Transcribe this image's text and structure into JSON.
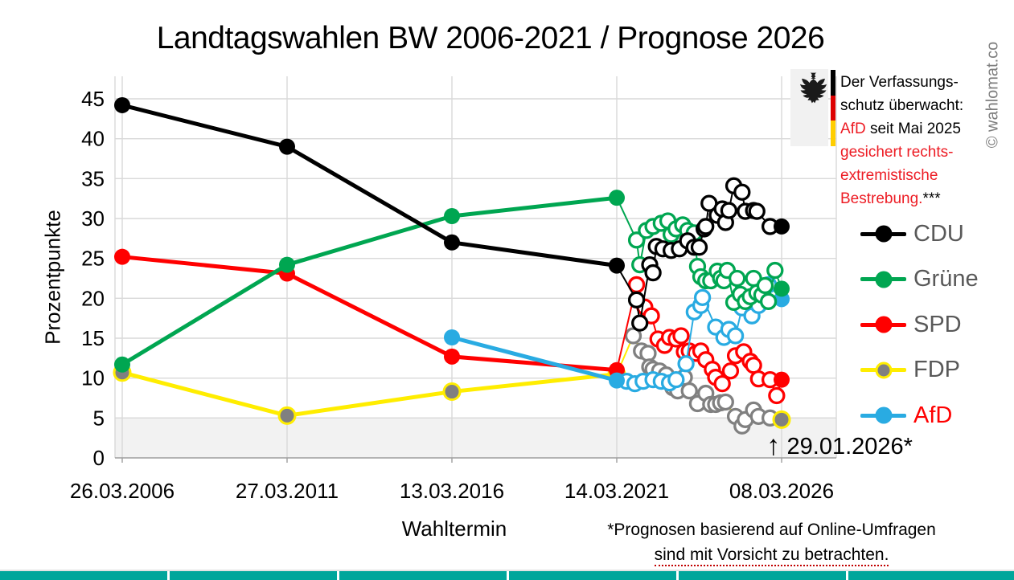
{
  "title": "Landtagswahlen BW 2006-2021 / Prognose 2026",
  "watermark": "© wahlomat.co",
  "infobox": {
    "line1": "Der Verfassungs-",
    "line2": "schutz überwacht:",
    "line3_red": "AfD",
    "line3_black": " seit Mai 2025",
    "line4": "gesichert rechts-",
    "line5": "extremistische",
    "line6_red": "Bestrebung.",
    "line6_black": "***",
    "flag_colors": [
      "#000000",
      "#dd0000",
      "#ffce00"
    ]
  },
  "annotation": {
    "arrow": "↑",
    "label": "29.01.2026*"
  },
  "footnote": {
    "line1": "*Prognosen basierend auf Online-Umfragen",
    "line2": "sind mit Vorsicht zu betrachten."
  },
  "bottom_bar": {
    "color": "#00a69b"
  },
  "chart_data": {
    "type": "line",
    "title": "Landtagswahlen BW 2006-2021 / Prognose 2026",
    "xlabel": "Wahltermin",
    "ylabel": "Prozentpunkte",
    "ylim": [
      0,
      45
    ],
    "yticks": [
      0,
      5,
      10,
      15,
      20,
      25,
      30,
      35,
      40,
      45
    ],
    "categories": [
      "26.03.2006",
      "27.03.2011",
      "13.03.2016",
      "14.03.2021",
      "08.03.2026"
    ],
    "grid": true,
    "legend_position": "right",
    "threshold_band": {
      "from": 0,
      "to": 5
    },
    "colors": {
      "grid": "#d9d9d9",
      "band": "#f2f2f2",
      "band_edge": "#cfcfcf",
      "axis": "#9e9e9e"
    },
    "zorder": [
      "FDP",
      "SPD",
      "AfD",
      "Grüne",
      "CDU"
    ],
    "extra_marker": {
      "color": "#7030a0",
      "point": [
        3.27,
        9.5
      ]
    },
    "series": [
      {
        "name": "CDU",
        "line_color": "#000000",
        "marker_color": "#000000",
        "label_color": "#595959",
        "elections": [
          [
            0,
            44.2
          ],
          [
            1,
            39.0
          ],
          [
            2,
            27.0
          ],
          [
            3,
            24.1
          ]
        ],
        "polls": [
          [
            3.12,
            19.8
          ],
          [
            3.14,
            16.9
          ],
          [
            3.2,
            24.2
          ],
          [
            3.22,
            23.2
          ],
          [
            3.24,
            26.5
          ],
          [
            3.28,
            26.2
          ],
          [
            3.33,
            26.0
          ],
          [
            3.38,
            26.2
          ],
          [
            3.43,
            27.2
          ],
          [
            3.47,
            26.4
          ],
          [
            3.5,
            26.4
          ],
          [
            3.53,
            28.7
          ],
          [
            3.54,
            29.0
          ],
          [
            3.56,
            31.9
          ],
          [
            3.61,
            30.4
          ],
          [
            3.64,
            31.2
          ],
          [
            3.66,
            29.5
          ],
          [
            3.68,
            31.0
          ],
          [
            3.71,
            34.1
          ],
          [
            3.76,
            33.3
          ],
          [
            3.78,
            30.9
          ],
          [
            3.83,
            31.0
          ],
          [
            3.85,
            30.9
          ],
          [
            3.93,
            29.0
          ]
        ],
        "prognose": [
          4,
          29.0
        ]
      },
      {
        "name": "Grüne",
        "line_color": "#00a651",
        "marker_color": "#00a651",
        "label_color": "#595959",
        "elections": [
          [
            0,
            11.7
          ],
          [
            1,
            24.2
          ],
          [
            2,
            30.3
          ],
          [
            3,
            32.6
          ]
        ],
        "polls": [
          [
            3.12,
            27.3
          ],
          [
            3.14,
            24.2
          ],
          [
            3.18,
            28.5
          ],
          [
            3.22,
            29.0
          ],
          [
            3.27,
            29.4
          ],
          [
            3.31,
            29.7
          ],
          [
            3.33,
            28.0
          ],
          [
            3.36,
            28.7
          ],
          [
            3.4,
            29.2
          ],
          [
            3.43,
            28.5
          ],
          [
            3.47,
            28.2
          ],
          [
            3.49,
            24.0
          ],
          [
            3.51,
            22.7
          ],
          [
            3.54,
            22.2
          ],
          [
            3.57,
            22.2
          ],
          [
            3.61,
            23.4
          ],
          [
            3.63,
            22.5
          ],
          [
            3.65,
            22.2
          ],
          [
            3.67,
            23.5
          ],
          [
            3.71,
            19.5
          ],
          [
            3.73,
            22.5
          ],
          [
            3.75,
            20.5
          ],
          [
            3.78,
            19.6
          ],
          [
            3.81,
            20.2
          ],
          [
            3.83,
            22.5
          ],
          [
            3.85,
            20.7
          ],
          [
            3.88,
            20.4
          ],
          [
            3.9,
            21.6
          ],
          [
            3.92,
            19.6
          ],
          [
            3.96,
            23.5
          ]
        ],
        "prognose": [
          4,
          21.2
        ]
      },
      {
        "name": "SPD",
        "line_color": "#ff0000",
        "marker_color": "#ff0000",
        "label_color": "#595959",
        "elections": [
          [
            0,
            25.2
          ],
          [
            1,
            23.1
          ],
          [
            2,
            12.7
          ],
          [
            3,
            11.0
          ]
        ],
        "polls": [
          [
            3.12,
            21.7
          ],
          [
            3.17,
            18.9
          ],
          [
            3.21,
            17.8
          ],
          [
            3.25,
            14.9
          ],
          [
            3.29,
            14.1
          ],
          [
            3.32,
            15.1
          ],
          [
            3.36,
            14.9
          ],
          [
            3.39,
            15.3
          ],
          [
            3.41,
            13.3
          ],
          [
            3.44,
            13.4
          ],
          [
            3.48,
            13.1
          ],
          [
            3.51,
            13.4
          ],
          [
            3.54,
            12.3
          ],
          [
            3.58,
            11.1
          ],
          [
            3.6,
            10.1
          ],
          [
            3.64,
            9.3
          ],
          [
            3.69,
            10.9
          ],
          [
            3.72,
            12.8
          ],
          [
            3.77,
            13.3
          ],
          [
            3.81,
            12.1
          ],
          [
            3.83,
            11.6
          ],
          [
            3.86,
            9.9
          ],
          [
            3.93,
            9.8
          ],
          [
            3.97,
            7.8
          ]
        ],
        "prognose": [
          4,
          9.8
        ]
      },
      {
        "name": "FDP",
        "line_color": "#ffed00",
        "marker_color": "#808080",
        "marker_ring": "#ffed00",
        "poll_ring": "#808080",
        "label_color": "#595959",
        "elections": [
          [
            0,
            10.7
          ],
          [
            1,
            5.3
          ],
          [
            2,
            8.3
          ],
          [
            3,
            10.5
          ]
        ],
        "polls": [
          [
            3.1,
            15.3
          ],
          [
            3.15,
            13.4
          ],
          [
            3.19,
            13.1
          ],
          [
            3.2,
            11.4
          ],
          [
            3.22,
            11.1
          ],
          [
            3.26,
            10.9
          ],
          [
            3.3,
            10.4
          ],
          [
            3.34,
            8.8
          ],
          [
            3.37,
            8.4
          ],
          [
            3.41,
            10.1
          ],
          [
            3.44,
            8.4
          ],
          [
            3.49,
            6.8
          ],
          [
            3.54,
            8.1
          ],
          [
            3.57,
            6.7
          ],
          [
            3.6,
            6.7
          ],
          [
            3.63,
            6.9
          ],
          [
            3.66,
            7.0
          ],
          [
            3.72,
            5.2
          ],
          [
            3.76,
            4.0
          ],
          [
            3.78,
            4.8
          ],
          [
            3.83,
            6.0
          ],
          [
            3.86,
            5.2
          ],
          [
            3.93,
            5.0
          ]
        ],
        "prognose": [
          4,
          4.8
        ]
      },
      {
        "name": "AfD",
        "line_color": "#29abe2",
        "marker_color": "#29abe2",
        "label_color": "#ff0000",
        "elections": [
          [
            2,
            15.1
          ],
          [
            3,
            9.7
          ]
        ],
        "polls": [
          [
            3.06,
            9.6
          ],
          [
            3.11,
            9.3
          ],
          [
            3.16,
            9.6
          ],
          [
            3.22,
            9.8
          ],
          [
            3.27,
            9.6
          ],
          [
            3.32,
            9.4
          ],
          [
            3.36,
            9.8
          ],
          [
            3.42,
            11.8
          ],
          [
            3.47,
            18.3
          ],
          [
            3.51,
            19.1
          ],
          [
            3.52,
            20.1
          ],
          [
            3.6,
            16.4
          ],
          [
            3.65,
            15.1
          ],
          [
            3.68,
            16.1
          ],
          [
            3.72,
            15.3
          ],
          [
            3.76,
            18.8
          ],
          [
            3.82,
            17.8
          ],
          [
            3.86,
            19.1
          ],
          [
            3.92,
            21.7
          ]
        ],
        "prognose": [
          4,
          19.9
        ]
      }
    ]
  }
}
